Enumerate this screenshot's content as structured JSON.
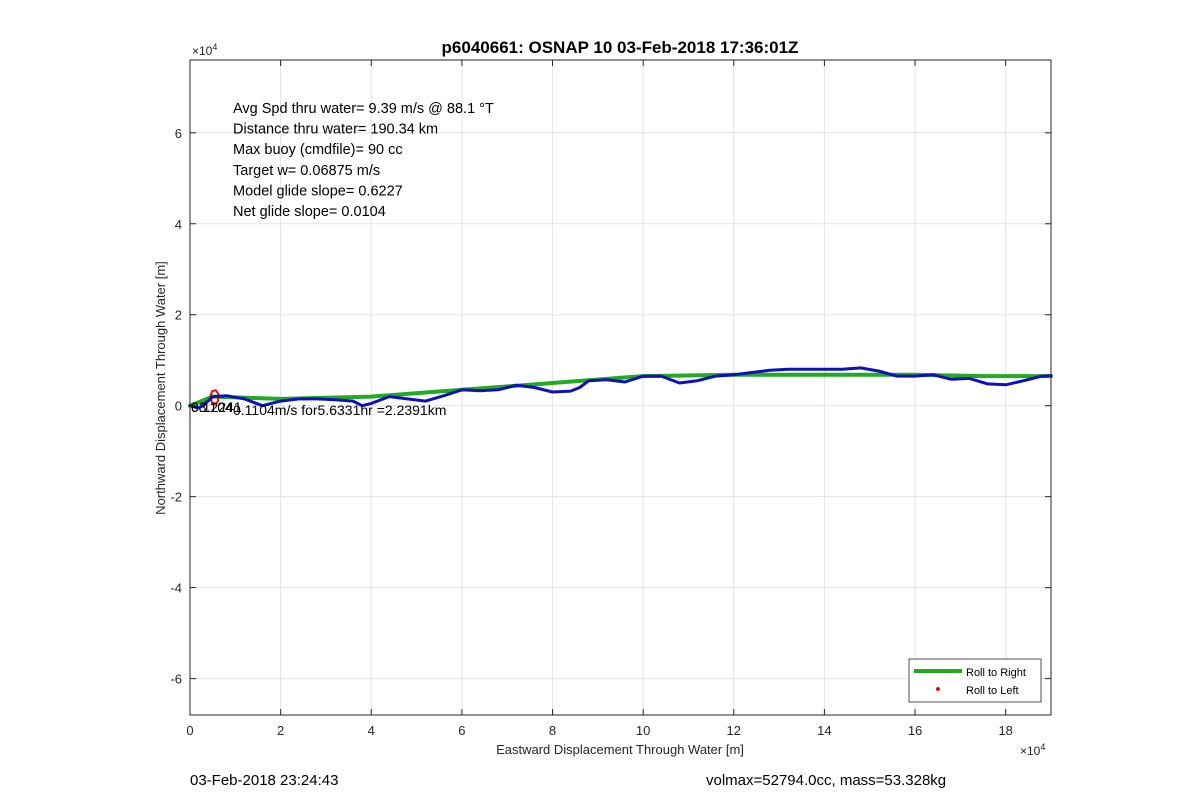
{
  "chart_data": {
    "type": "line",
    "title": "p6040661: OSNAP 10 03-Feb-2018 17:36:01Z",
    "xlabel": "Eastward Displacement Through Water [m]",
    "ylabel": "Northward Displacement Through Water [m]",
    "xlim": [
      0,
      190000
    ],
    "ylim": [
      -68000,
      76000
    ],
    "xticks": [
      0,
      20000,
      40000,
      60000,
      80000,
      100000,
      120000,
      140000,
      160000,
      180000
    ],
    "yticks": [
      -60000,
      -40000,
      -20000,
      0,
      20000,
      40000,
      60000
    ],
    "xtick_labels": [
      "0",
      "2",
      "4",
      "6",
      "8",
      "10",
      "12",
      "14",
      "16",
      "18"
    ],
    "ytick_labels": [
      "-6",
      "-4",
      "-2",
      "0",
      "2",
      "4",
      "6"
    ],
    "x_exponent": "×10",
    "y_exponent": "×10",
    "exponent_power": "4",
    "grid": true,
    "legend_position": "bottom-right",
    "series": [
      {
        "name": "Roll to Right",
        "color": "#22aa22",
        "x": [
          0,
          5000,
          20000,
          40000,
          60000,
          80000,
          100000,
          120000,
          140000,
          160000,
          175000,
          190000
        ],
        "y": [
          0,
          2000,
          1500,
          2000,
          3500,
          5000,
          6500,
          6800,
          6800,
          6800,
          6500,
          6500
        ]
      },
      {
        "name": "Roll to Left",
        "color": "#e01010",
        "x": [
          4800,
          4500,
          4900,
          5700,
          6300,
          6200,
          5500,
          4800
        ],
        "y": [
          800,
          2200,
          3200,
          3400,
          2500,
          1000,
          200,
          800
        ]
      },
      {
        "name": "",
        "color": "#1010bb",
        "x": [
          0,
          2000,
          4000,
          5000,
          8000,
          12000,
          16000,
          20000,
          24000,
          28000,
          32000,
          36000,
          38000,
          40000,
          44000,
          48000,
          52000,
          56000,
          60000,
          64000,
          68000,
          72000,
          76000,
          80000,
          84000,
          86000,
          88000,
          92000,
          96000,
          100000,
          104000,
          108000,
          112000,
          116000,
          120000,
          124000,
          128000,
          132000,
          136000,
          140000,
          144000,
          148000,
          152000,
          156000,
          160000,
          164000,
          168000,
          172000,
          176000,
          180000,
          184000,
          188000,
          190000
        ],
        "y": [
          0,
          -500,
          1000,
          2000,
          2200,
          1500,
          0,
          1000,
          1500,
          1500,
          1300,
          1000,
          0,
          500,
          2000,
          1500,
          1000,
          2200,
          3500,
          3300,
          3500,
          4500,
          4000,
          3000,
          3200,
          4000,
          5500,
          5700,
          5200,
          6500,
          6500,
          5000,
          5500,
          6500,
          6800,
          7300,
          7800,
          8000,
          8000,
          8000,
          8000,
          8300,
          7600,
          6500,
          6500,
          6800,
          5800,
          6000,
          4800,
          4600,
          5500,
          6500,
          6600
        ]
      }
    ],
    "annotations": [
      {
        "text": "Avg Spd thru water=  9.39 m/s @  88.1 °T"
      },
      {
        "text": "Distance thru water= 190.34 km"
      },
      {
        "text": "Max buoy (cmdfile)= 90 cc"
      },
      {
        "text": "Target w= 0.06875 m/s"
      },
      {
        "text": "Model glide slope= 0.6227"
      },
      {
        "text": "Net glide slope= 0.0104"
      }
    ],
    "overlap_labels": [
      {
        "text": "0.1104m/s for5.6331hr =2.2391km"
      },
      {
        "text": "93.2241"
      },
      {
        "text": "0.1104"
      }
    ]
  },
  "footer": {
    "left": "03-Feb-2018 23:24:43",
    "right": "volmax=52794.0cc, mass=53.328kg"
  }
}
